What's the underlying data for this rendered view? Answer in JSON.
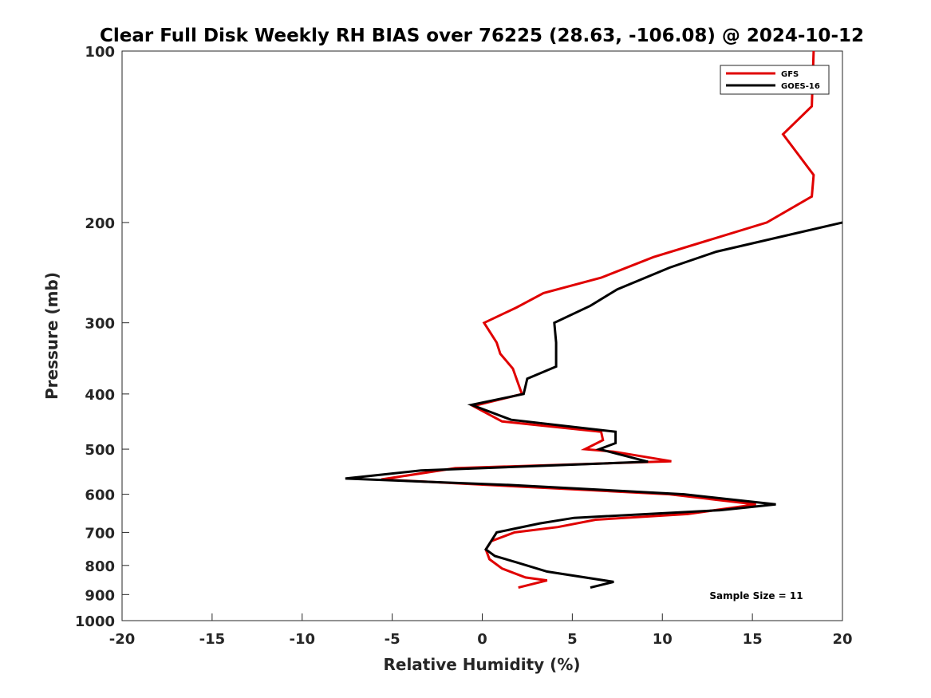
{
  "chart_data": {
    "type": "line",
    "title": "Clear Full Disk Weekly RH BIAS over 76225 (28.63, -106.08) @ 2024-10-12",
    "xlabel": "Relative Humidity (%)",
    "ylabel": "Pressure (mb)",
    "xlim": [
      -20,
      20
    ],
    "ylim": [
      100,
      1000
    ],
    "yscale": "log",
    "y_reversed": true,
    "xticks": [
      -20,
      -15,
      -10,
      -5,
      0,
      5,
      10,
      15,
      20
    ],
    "yticks": [
      100,
      200,
      300,
      400,
      500,
      600,
      700,
      800,
      900,
      1000
    ],
    "grid": false,
    "legend_position": "top-right",
    "annotation": "Sample Size = 11",
    "series": [
      {
        "name": "GFS",
        "color": "#e00000",
        "points": [
          {
            "x": 18.4,
            "y": 100
          },
          {
            "x": 18.3,
            "y": 125
          },
          {
            "x": 16.7,
            "y": 140
          },
          {
            "x": 18.4,
            "y": 165
          },
          {
            "x": 18.3,
            "y": 180
          },
          {
            "x": 15.8,
            "y": 200
          },
          {
            "x": 9.5,
            "y": 230
          },
          {
            "x": 6.6,
            "y": 250
          },
          {
            "x": 3.4,
            "y": 266
          },
          {
            "x": 1.9,
            "y": 282
          },
          {
            "x": 0.1,
            "y": 300
          },
          {
            "x": 0.8,
            "y": 325
          },
          {
            "x": 1.0,
            "y": 340
          },
          {
            "x": 1.7,
            "y": 361
          },
          {
            "x": 2.2,
            "y": 400
          },
          {
            "x": -0.5,
            "y": 420
          },
          {
            "x": 1.1,
            "y": 447
          },
          {
            "x": 6.6,
            "y": 466
          },
          {
            "x": 6.7,
            "y": 482
          },
          {
            "x": 5.7,
            "y": 500
          },
          {
            "x": 7.3,
            "y": 505
          },
          {
            "x": 10.5,
            "y": 525
          },
          {
            "x": -1.5,
            "y": 540
          },
          {
            "x": -5.6,
            "y": 565
          },
          {
            "x": 10.4,
            "y": 600
          },
          {
            "x": 15.2,
            "y": 625
          },
          {
            "x": 11.4,
            "y": 650
          },
          {
            "x": 6.3,
            "y": 665
          },
          {
            "x": 4.2,
            "y": 685
          },
          {
            "x": 1.8,
            "y": 700
          },
          {
            "x": 0.5,
            "y": 725
          },
          {
            "x": 0.2,
            "y": 750
          },
          {
            "x": 0.4,
            "y": 780
          },
          {
            "x": 1.1,
            "y": 810
          },
          {
            "x": 2.4,
            "y": 840
          },
          {
            "x": 3.6,
            "y": 850
          },
          {
            "x": 2.0,
            "y": 875
          }
        ]
      },
      {
        "name": "GOES-16",
        "color": "#000000",
        "points": [
          {
            "x": 20.0,
            "y": 200
          },
          {
            "x": 13.0,
            "y": 225
          },
          {
            "x": 10.4,
            "y": 240
          },
          {
            "x": 7.5,
            "y": 262
          },
          {
            "x": 6.0,
            "y": 280
          },
          {
            "x": 4.0,
            "y": 300
          },
          {
            "x": 4.1,
            "y": 325
          },
          {
            "x": 4.1,
            "y": 358
          },
          {
            "x": 2.5,
            "y": 376
          },
          {
            "x": 2.3,
            "y": 400
          },
          {
            "x": -0.6,
            "y": 418
          },
          {
            "x": 1.6,
            "y": 444
          },
          {
            "x": 7.4,
            "y": 466
          },
          {
            "x": 7.4,
            "y": 488
          },
          {
            "x": 6.5,
            "y": 500
          },
          {
            "x": 9.2,
            "y": 526
          },
          {
            "x": -3.4,
            "y": 545
          },
          {
            "x": -7.6,
            "y": 563
          },
          {
            "x": 1.6,
            "y": 578
          },
          {
            "x": 11.2,
            "y": 600
          },
          {
            "x": 16.3,
            "y": 625
          },
          {
            "x": 13.2,
            "y": 640
          },
          {
            "x": 5.1,
            "y": 660
          },
          {
            "x": 3.2,
            "y": 675
          },
          {
            "x": 0.8,
            "y": 700
          },
          {
            "x": 0.2,
            "y": 750
          },
          {
            "x": 0.7,
            "y": 770
          },
          {
            "x": 1.9,
            "y": 790
          },
          {
            "x": 3.6,
            "y": 820
          },
          {
            "x": 7.3,
            "y": 855
          },
          {
            "x": 6.0,
            "y": 875
          }
        ]
      }
    ]
  }
}
